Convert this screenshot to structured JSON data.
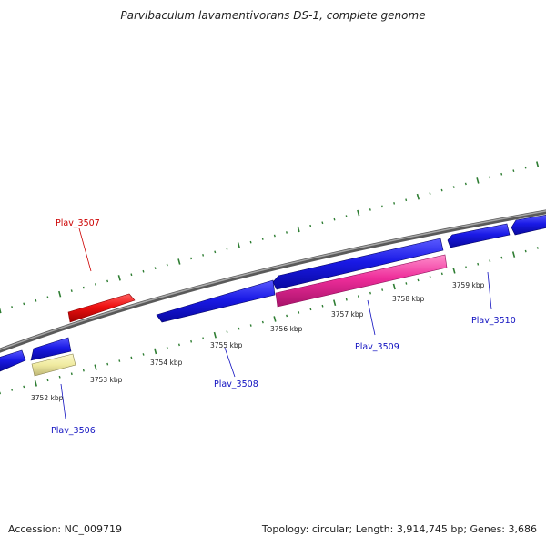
{
  "title": "Parvibaculum lavamentivorans DS-1, complete genome",
  "footer": {
    "accession": "Accession: NC_009719",
    "summary": "Topology: circular; Length: 3,914,745 bp; Genes: 3,686"
  },
  "colors": {
    "backbone": "#808080",
    "tick": "#2e7d32",
    "forward_gene": "#ee1111",
    "reverse_gene": "#1010d8",
    "rna_gene": "#ee2d9a",
    "pseudo_gene": "#f0eba0",
    "label_forward": "#cc0000",
    "label_reverse": "#1010c0"
  },
  "kbp_labels": [
    "3752 kbp",
    "3753 kbp",
    "3754 kbp",
    "3755 kbp",
    "3756 kbp",
    "3757 kbp",
    "3758 kbp",
    "3759 kbp"
  ],
  "gene_labels": [
    "Plav_3506",
    "Plav_3507",
    "Plav_3508",
    "Plav_3509",
    "Plav_3510"
  ]
}
